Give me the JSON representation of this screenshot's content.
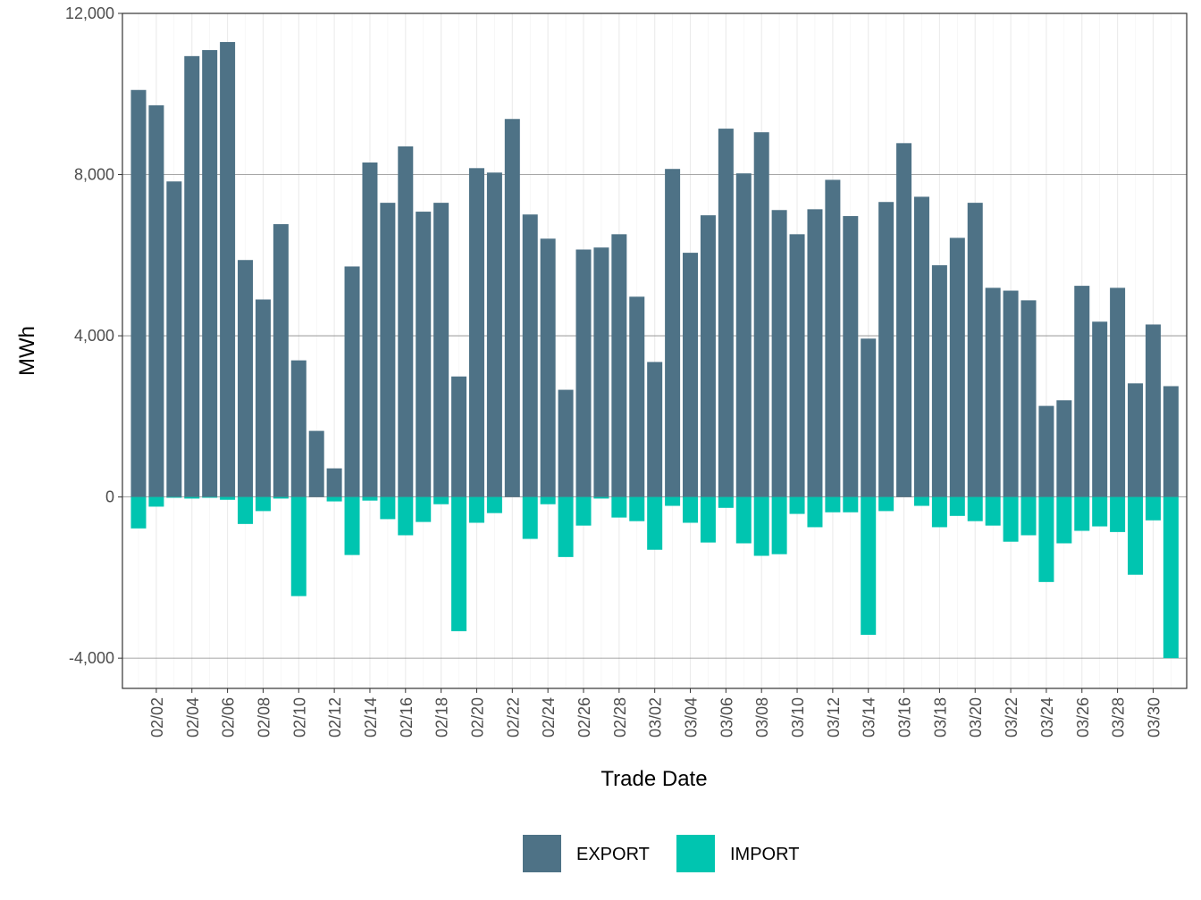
{
  "chart_data": {
    "type": "bar",
    "x_label": "Trade Date",
    "y_label": "MWh",
    "categories": [
      null,
      "02/02",
      null,
      "02/04",
      null,
      "02/06",
      null,
      "02/08",
      null,
      "02/10",
      null,
      "02/12",
      null,
      "02/14",
      null,
      "02/16",
      null,
      "02/18",
      null,
      "02/20",
      null,
      "02/22",
      null,
      "02/24",
      null,
      "02/26",
      null,
      "02/28",
      null,
      "03/02",
      null,
      "03/04",
      null,
      "03/06",
      null,
      "03/08",
      null,
      "03/10",
      null,
      "03/12",
      null,
      "03/14",
      null,
      "03/16",
      null,
      "03/18",
      null,
      "03/20",
      null,
      "03/22",
      null,
      "03/24",
      null,
      "03/26",
      null,
      "03/28",
      null,
      "03/30",
      null
    ],
    "series": [
      {
        "name": "EXPORT",
        "color": "#4e7286",
        "values": [
          10100,
          9720,
          7830,
          10940,
          11090,
          11290,
          5880,
          4900,
          6770,
          3390,
          1640,
          710,
          5720,
          8300,
          7300,
          8700,
          7080,
          7300,
          2990,
          8160,
          8050,
          9380,
          7010,
          6410,
          2660,
          6140,
          6190,
          6520,
          4970,
          3350,
          8140,
          6060,
          6990,
          9140,
          8030,
          9050,
          7120,
          6520,
          7140,
          7870,
          6970,
          3930,
          7320,
          8780,
          7450,
          5750,
          6430,
          7300,
          5190,
          5120,
          4880,
          2260,
          2400,
          5240,
          4350,
          5190,
          2820,
          4280,
          2750
        ]
      },
      {
        "name": "IMPORT",
        "color": "#00c5b0",
        "values": [
          -780,
          -240,
          -20,
          -40,
          -20,
          -70,
          -670,
          -350,
          -40,
          -2460,
          0,
          -110,
          -1440,
          -90,
          -550,
          -950,
          -620,
          -180,
          -3330,
          -640,
          -400,
          0,
          -1040,
          -180,
          -1490,
          -710,
          -40,
          -510,
          -600,
          -1310,
          -220,
          -640,
          -1130,
          -270,
          -1150,
          -1460,
          -1420,
          -420,
          -750,
          -380,
          -380,
          -3420,
          -350,
          0,
          -220,
          -750,
          -470,
          -600,
          -710,
          -1110,
          -950,
          -2110,
          -1150,
          -840,
          -730,
          -870,
          -1930,
          -580,
          -4000
        ]
      }
    ],
    "ylim": [
      -4750,
      12000
    ],
    "yticks": [
      {
        "value": -4000,
        "label": "-4,000"
      },
      0,
      {
        "value": 4000,
        "label": "4,000"
      },
      {
        "value": 8000,
        "label": "8,000"
      },
      {
        "value": 12000,
        "label": "12,000"
      }
    ],
    "grid": true,
    "legend": "bottom"
  }
}
